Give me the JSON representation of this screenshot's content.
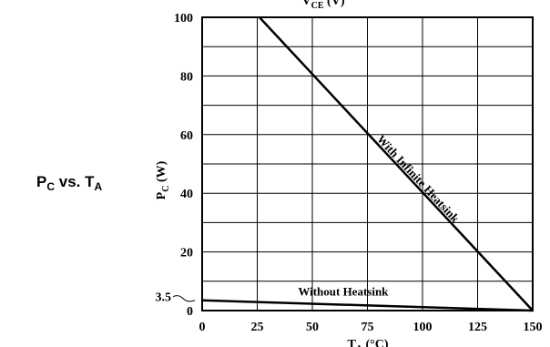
{
  "side_title": {
    "main": "P",
    "sub1": "C",
    "mid": " vs. T",
    "sub2": "A"
  },
  "chart_data": {
    "type": "line",
    "title": "",
    "xlabel": {
      "main": "T",
      "sub": "A",
      "unit": " (°C)"
    },
    "ylabel": {
      "main": "P",
      "sub": "C",
      "unit": " (W)"
    },
    "top_label": {
      "main": "V",
      "sub": "CE",
      "unit": " (V)"
    },
    "xlim": [
      0,
      150
    ],
    "ylim": [
      0,
      100
    ],
    "xticks": [
      0,
      25,
      50,
      75,
      100,
      125,
      150
    ],
    "yticks": [
      0,
      20,
      40,
      60,
      80,
      100
    ],
    "extra_ytick": {
      "value": 3.5,
      "label": "3.5"
    },
    "grid": true,
    "series": [
      {
        "name": "With Infinite Heatsink",
        "x": [
          26,
          150
        ],
        "y": [
          100,
          0
        ]
      },
      {
        "name": "Without Heatsink",
        "x": [
          0,
          150
        ],
        "y": [
          3.5,
          0
        ]
      }
    ]
  }
}
